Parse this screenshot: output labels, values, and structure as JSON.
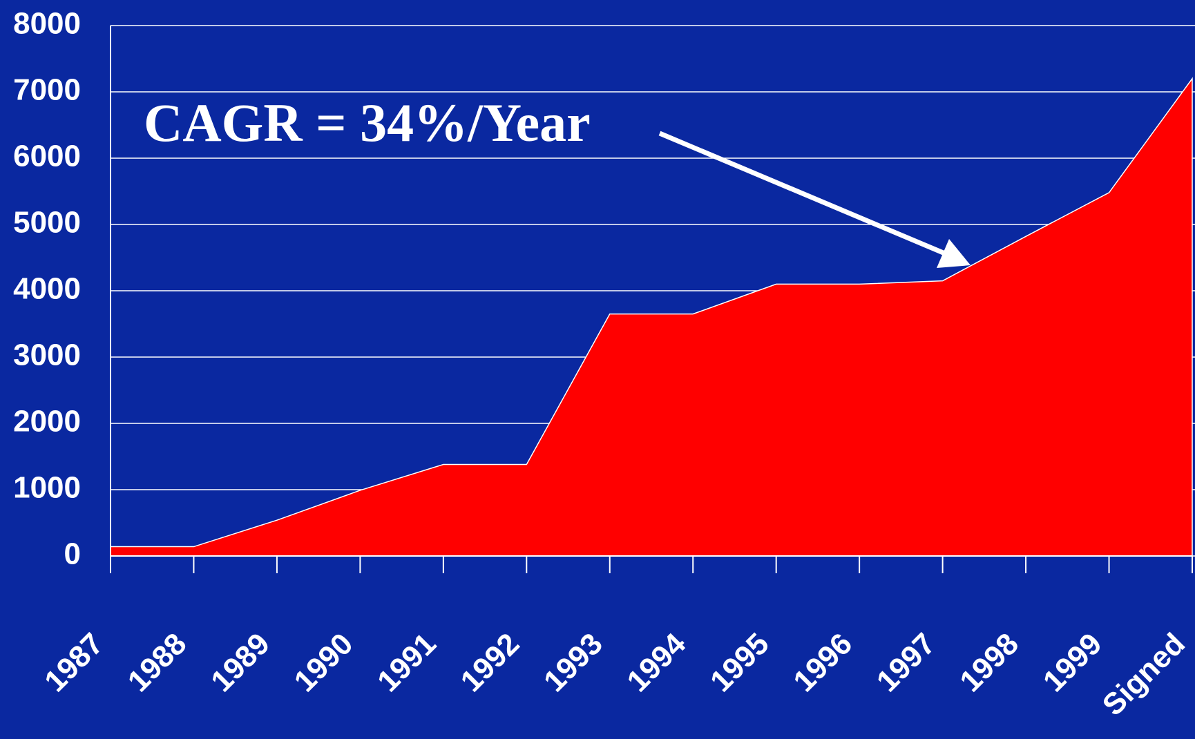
{
  "chart_data": {
    "type": "area",
    "categories": [
      "1987",
      "1988",
      "1989",
      "1990",
      "1991",
      "1992",
      "1993",
      "1994",
      "1995",
      "1996",
      "1997",
      "1998",
      "1999",
      "Signed"
    ],
    "values": [
      140,
      140,
      540,
      990,
      1380,
      1380,
      3650,
      3650,
      4100,
      4100,
      4150,
      4820,
      5480,
      7200
    ],
    "color": "#ff0000",
    "ylim": [
      0,
      8000
    ],
    "yticks": [
      0,
      1000,
      2000,
      3000,
      4000,
      5000,
      6000,
      7000,
      8000
    ],
    "grid": true,
    "annotation": "CAGR = 34%/Year"
  }
}
